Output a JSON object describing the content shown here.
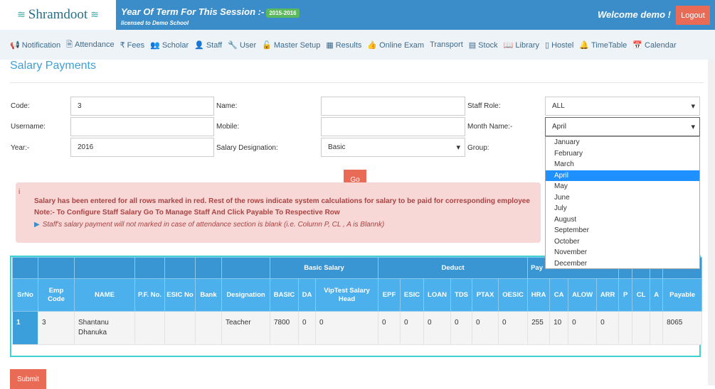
{
  "header": {
    "logo": "Shramdoot",
    "term_label": "Year Of Term For This Session :-",
    "session": "2015-2016",
    "license": "licensed to Demo School",
    "welcome": "Welcome demo !",
    "logout": "Logout"
  },
  "nav": [
    {
      "icon": "megaphone-icon",
      "g": "📢",
      "label": "Notification"
    },
    {
      "icon": "document-icon",
      "g": "🗎",
      "label": "Attendance"
    },
    {
      "icon": "rupee-icon",
      "g": "₹",
      "label": "Fees"
    },
    {
      "icon": "users-icon",
      "g": "👥",
      "label": "Scholar"
    },
    {
      "icon": "user-icon",
      "g": "👤",
      "label": "Staff"
    },
    {
      "icon": "wrench-icon",
      "g": "🔧",
      "label": "User"
    },
    {
      "icon": "unlock-icon",
      "g": "🔓",
      "label": "Master Setup"
    },
    {
      "icon": "chart-icon",
      "g": "▦",
      "label": "Results"
    },
    {
      "icon": "thumb-icon",
      "g": "👍",
      "label": "Online Exam"
    },
    {
      "icon": "",
      "g": "",
      "label": "Transport"
    },
    {
      "icon": "stock-icon",
      "g": "▤",
      "label": "Stock"
    },
    {
      "icon": "book-icon",
      "g": "📖",
      "label": "Library"
    },
    {
      "icon": "hostel-icon",
      "g": "▯",
      "label": "Hostel"
    },
    {
      "icon": "bell-icon",
      "g": "🔔",
      "label": "TimeTable"
    },
    {
      "icon": "calendar-icon",
      "g": "📅",
      "label": "Calendar"
    }
  ],
  "page_title": "Salary Payments",
  "form": {
    "code_label": "Code:",
    "code": "3",
    "name_label": "Name:",
    "name": "",
    "role_label": "Staff Role:",
    "role": "ALL",
    "username_label": "Username:",
    "username": "",
    "mobile_label": "Mobile:",
    "mobile": "",
    "month_label": "Month Name:-",
    "month": "April",
    "year_label": "Year:-",
    "year": "2016",
    "desig_label": "Salary Designation:",
    "desig": "Basic",
    "group_label": "Group:",
    "go": "Go"
  },
  "months": [
    "January",
    "February",
    "March",
    "April",
    "May",
    "June",
    "July",
    "August",
    "September",
    "October",
    "November",
    "December"
  ],
  "alert": {
    "icon": "i",
    "line1": "Salary has been entered for all rows marked in red. Rest of the rows indicate system calculations for salary to be paid for corresponding employee",
    "line2": "Note:- To Configure Staff Salary Go To Manage Staff And Click Payable To Respective Row",
    "line3": "Staff's salary payment will not marked in case of attendance section is blank (i.e. Column P, CL , A is Blannk)"
  },
  "table": {
    "groups": {
      "basic": "Basic Salary",
      "deduct": "Deduct",
      "pay": "Pay"
    },
    "columns": [
      "SrNo",
      "Emp Code",
      "NAME",
      "P.F. No.",
      "ESIC No",
      "Bank",
      "Designation",
      "BASIC",
      "DA",
      "VipTest Salary Head",
      "EPF",
      "ESIC",
      "LOAN",
      "TDS",
      "PTAX",
      "OESIC",
      "HRA",
      "CA",
      "ALOW",
      "ARR",
      "P",
      "CL",
      "A",
      "Payable"
    ],
    "rows": [
      [
        "1",
        "3",
        "Shantanu Dhanuka",
        "",
        "",
        "",
        "Teacher",
        "7800",
        "0",
        "0",
        "0",
        "0",
        "0",
        "0",
        "0",
        "0",
        "255",
        "10",
        "0",
        "0",
        "",
        "",
        "",
        "8065"
      ]
    ]
  },
  "submit": "Submit"
}
